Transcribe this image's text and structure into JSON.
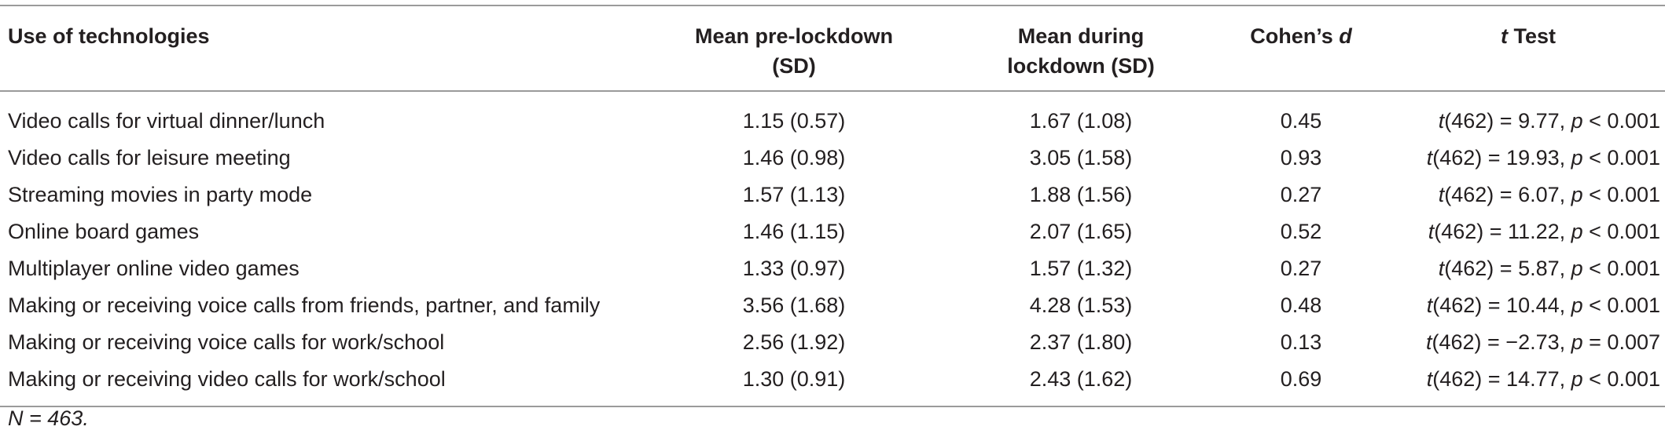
{
  "table": {
    "headers": {
      "col1": "Use of technologies",
      "col2_line1": "Mean pre-lockdown",
      "col2_line2": "(SD)",
      "col3_line1": "Mean during",
      "col3_line2": "lockdown (SD)",
      "col4_text": "Cohen’s ",
      "col4_italic": "d",
      "col5_italic": "t",
      "col5_text": " Test"
    },
    "rows": [
      {
        "use": "Video calls for virtual dinner/lunch",
        "pre": "1.15 (0.57)",
        "during": "1.67 (1.08)",
        "d": "0.45",
        "t_df": "(462) = 9.77, ",
        "p_op": " < 0.001"
      },
      {
        "use": "Video calls for leisure meeting",
        "pre": "1.46 (0.98)",
        "during": "3.05 (1.58)",
        "d": "0.93",
        "t_df": "(462) = 19.93, ",
        "p_op": " < 0.001"
      },
      {
        "use": "Streaming movies in party mode",
        "pre": "1.57 (1.13)",
        "during": "1.88 (1.56)",
        "d": "0.27",
        "t_df": "(462) = 6.07, ",
        "p_op": " < 0.001"
      },
      {
        "use": "Online board games",
        "pre": "1.46 (1.15)",
        "during": "2.07 (1.65)",
        "d": "0.52",
        "t_df": "(462) = 11.22, ",
        "p_op": " < 0.001"
      },
      {
        "use": "Multiplayer online video games",
        "pre": "1.33 (0.97)",
        "during": "1.57 (1.32)",
        "d": "0.27",
        "t_df": "(462) = 5.87, ",
        "p_op": " < 0.001"
      },
      {
        "use": "Making or receiving voice calls from friends, partner, and family",
        "pre": "3.56 (1.68)",
        "during": "4.28 (1.53)",
        "d": "0.48",
        "t_df": "(462) = 10.44, ",
        "p_op": " < 0.001"
      },
      {
        "use": "Making or receiving voice calls for work/school",
        "pre": "2.56 (1.92)",
        "during": "2.37 (1.80)",
        "d": "0.13",
        "t_df": "(462) = −2.73, ",
        "p_op": " = 0.007"
      },
      {
        "use": "Making or receiving video calls for work/school",
        "pre": "1.30 (0.91)",
        "during": "2.43 (1.62)",
        "d": "0.69",
        "t_df": "(462) = 14.77, ",
        "p_op": " < 0.001"
      }
    ],
    "t_symbol": "t",
    "p_symbol": "p"
  },
  "note": "N = 463."
}
